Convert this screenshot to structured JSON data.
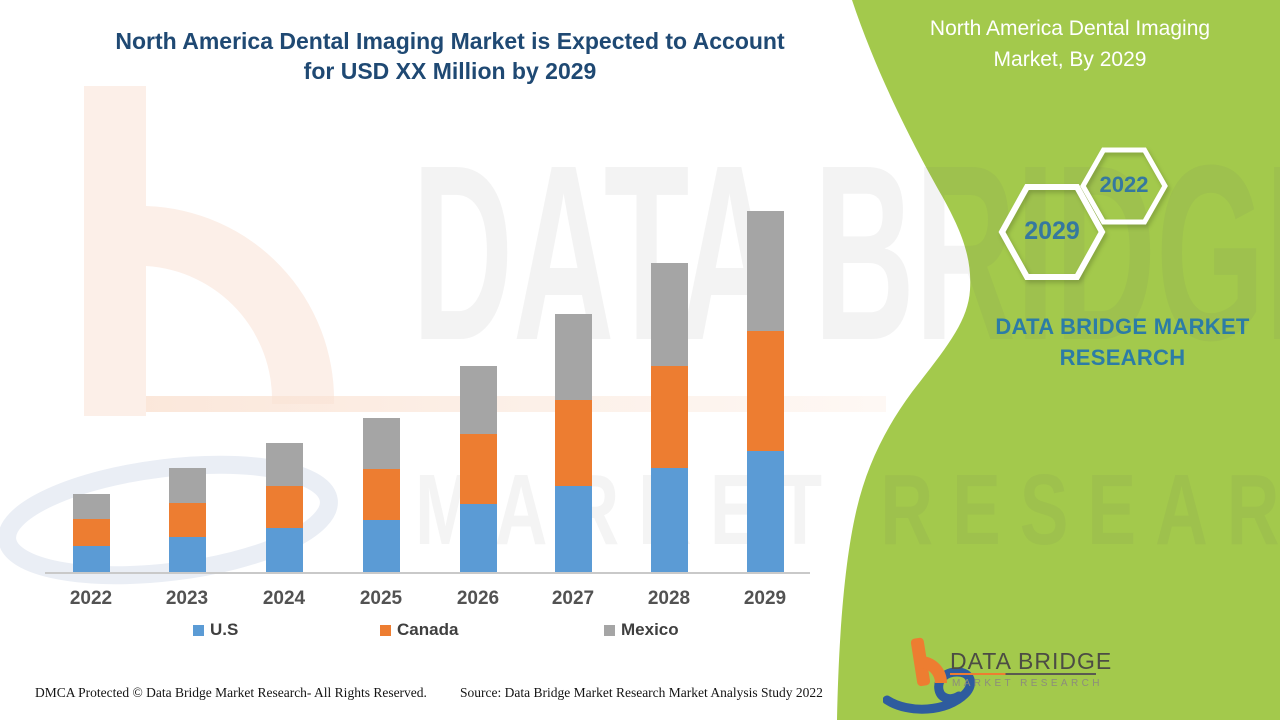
{
  "title": {
    "line1": "North America Dental Imaging Market is Expected to Account",
    "line2": "for USD XX Million by 2029"
  },
  "side_panel": {
    "heading_line1": "North America Dental Imaging",
    "heading_line2": "Market, By 2029",
    "badge_front": "2029",
    "badge_back": "2022",
    "brand_line1": "DATA BRIDGE MARKET",
    "brand_line2": "RESEARCH",
    "accent_green": "#A3C94C",
    "badge_text_color": "#35789F"
  },
  "logo": {
    "title": "DATA BRIDGE",
    "subtitle": "MARKET RESEARCH"
  },
  "watermark": {
    "line1": "DATA BRIDGE",
    "line2": "MARKET RESEARCH"
  },
  "footer": {
    "left": "DMCA Protected © Data Bridge Market Research- All Rights Reserved.",
    "right": "Source: Data Bridge Market Research Market Analysis Study 2022"
  },
  "chart_data": {
    "type": "bar",
    "stacked": true,
    "title": "North America Dental Imaging Market is Expected to Account for USD XX Million by 2029",
    "categories": [
      "2022",
      "2023",
      "2024",
      "2025",
      "2026",
      "2027",
      "2028",
      "2029"
    ],
    "series": [
      {
        "name": "U.S",
        "color": "#5B9BD5",
        "values": [
          26,
          35,
          44,
          52,
          68,
          86,
          104,
          121
        ]
      },
      {
        "name": "Canada",
        "color": "#ED7D31",
        "values": [
          27,
          34,
          42,
          51,
          70,
          86,
          102,
          120
        ]
      },
      {
        "name": "Mexico",
        "color": "#A5A5A5",
        "values": [
          25,
          35,
          43,
          51,
          68,
          86,
          103,
          120
        ]
      }
    ],
    "xlabel": "",
    "ylabel": "",
    "value_axis_visible": false,
    "units_note": "Heights are relative estimates in unlabeled units; chart uses 'USD XX Million' placeholder",
    "grid": false,
    "legend_position": "bottom"
  }
}
